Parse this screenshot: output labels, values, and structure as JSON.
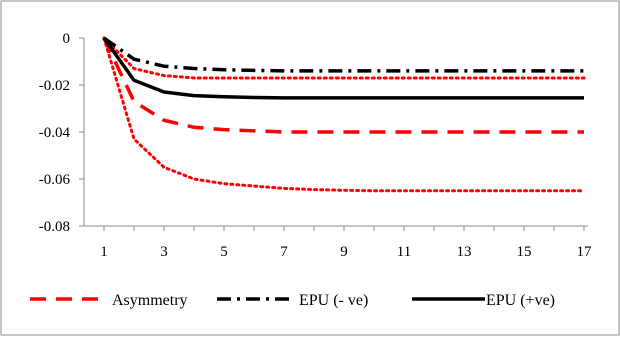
{
  "chart_data": {
    "type": "line",
    "title": "",
    "xlabel": "",
    "ylabel": "",
    "x": [
      1,
      2,
      3,
      4,
      5,
      6,
      7,
      8,
      9,
      10,
      11,
      12,
      13,
      14,
      15,
      16,
      17
    ],
    "xticks": [
      1,
      3,
      5,
      7,
      9,
      11,
      13,
      15,
      17
    ],
    "xtick_labels": [
      "1",
      "3",
      "5",
      "7",
      "9",
      "11",
      "13",
      "15",
      "17"
    ],
    "ylim": [
      -0.08,
      0
    ],
    "yticks": [
      0,
      -0.02,
      -0.04,
      -0.06,
      -0.08
    ],
    "ytick_labels": [
      "0",
      "-0.02",
      "-0.04",
      "-0.06",
      "-0.08"
    ],
    "grid": false,
    "legend_position": "bottom",
    "series": [
      {
        "name": "Asymmetry",
        "style": "dashed",
        "color": "#ff0000",
        "values": [
          0,
          -0.027,
          -0.035,
          -0.038,
          -0.039,
          -0.0395,
          -0.04,
          -0.04,
          -0.04,
          -0.04,
          -0.04,
          -0.04,
          -0.04,
          -0.04,
          -0.04,
          -0.04,
          -0.04
        ]
      },
      {
        "style": "dotted",
        "color": "#ff0000",
        "band": "upper",
        "values": [
          0,
          -0.013,
          -0.016,
          -0.017,
          -0.017,
          -0.017,
          -0.017,
          -0.017,
          -0.017,
          -0.017,
          -0.017,
          -0.017,
          -0.017,
          -0.017,
          -0.017,
          -0.017,
          -0.017
        ]
      },
      {
        "style": "dotted",
        "color": "#ff0000",
        "band": "lower",
        "values": [
          0,
          -0.043,
          -0.055,
          -0.06,
          -0.062,
          -0.063,
          -0.064,
          -0.0645,
          -0.0648,
          -0.065,
          -0.065,
          -0.065,
          -0.065,
          -0.065,
          -0.065,
          -0.065,
          -0.065
        ]
      },
      {
        "name": "EPU (- ve)",
        "style": "dashdot",
        "color": "#000000",
        "values": [
          0,
          -0.009,
          -0.012,
          -0.013,
          -0.0135,
          -0.0138,
          -0.014,
          -0.014,
          -0.014,
          -0.014,
          -0.014,
          -0.014,
          -0.014,
          -0.014,
          -0.014,
          -0.014,
          -0.014
        ]
      },
      {
        "name": "EPU (+ve)",
        "style": "solid",
        "color": "#000000",
        "values": [
          0,
          -0.018,
          -0.023,
          -0.0245,
          -0.025,
          -0.0253,
          -0.0255,
          -0.0255,
          -0.0255,
          -0.0255,
          -0.0255,
          -0.0255,
          -0.0255,
          -0.0255,
          -0.0255,
          -0.0255,
          -0.0255
        ]
      }
    ]
  }
}
